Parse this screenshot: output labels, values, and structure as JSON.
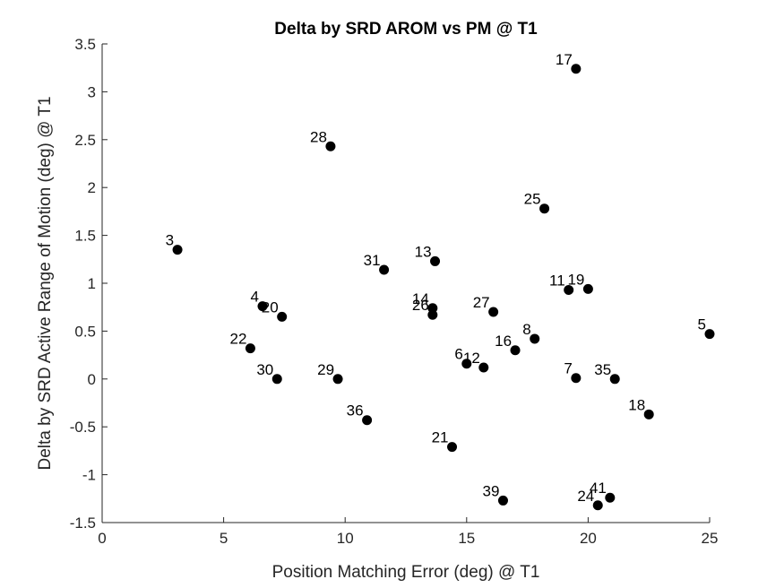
{
  "chart_data": {
    "type": "scatter",
    "title": "Delta by SRD AROM vs PM @ T1",
    "xlabel": "Position Matching Error (deg) @ T1",
    "ylabel": "Delta by SRD Active Range of Motion (deg) @ T1",
    "xlim": [
      0,
      25
    ],
    "ylim": [
      -1.5,
      3.5
    ],
    "xticks": [
      0,
      5,
      10,
      15,
      20,
      25
    ],
    "xtick_labels": [
      "0",
      "5",
      "10",
      "15",
      "20",
      "25"
    ],
    "yticks": [
      -1.5,
      -1,
      -0.5,
      0,
      0.5,
      1,
      1.5,
      2,
      2.5,
      3,
      3.5
    ],
    "ytick_labels": [
      "-1.5",
      "-1",
      "-0.5",
      "0",
      "0.5",
      "1",
      "1.5",
      "2",
      "2.5",
      "3",
      "3.5"
    ],
    "grid": false,
    "marker_color": "#000000",
    "points": [
      {
        "label": "3",
        "x": 3.1,
        "y": 1.35
      },
      {
        "label": "28",
        "x": 9.4,
        "y": 2.43
      },
      {
        "label": "17",
        "x": 19.5,
        "y": 3.24
      },
      {
        "label": "25",
        "x": 18.2,
        "y": 1.78
      },
      {
        "label": "31",
        "x": 11.6,
        "y": 1.14
      },
      {
        "label": "13",
        "x": 13.7,
        "y": 1.23
      },
      {
        "label": "11",
        "x": 19.2,
        "y": 0.93
      },
      {
        "label": "19",
        "x": 20.0,
        "y": 0.94
      },
      {
        "label": "4",
        "x": 6.6,
        "y": 0.76
      },
      {
        "label": "20",
        "x": 7.4,
        "y": 0.65
      },
      {
        "label": "14",
        "x": 13.6,
        "y": 0.74
      },
      {
        "label": "26",
        "x": 13.6,
        "y": 0.67
      },
      {
        "label": "27",
        "x": 16.1,
        "y": 0.7
      },
      {
        "label": "5",
        "x": 25.0,
        "y": 0.47
      },
      {
        "label": "22",
        "x": 6.1,
        "y": 0.32
      },
      {
        "label": "8",
        "x": 17.8,
        "y": 0.42
      },
      {
        "label": "16",
        "x": 17.0,
        "y": 0.3
      },
      {
        "label": "6",
        "x": 15.0,
        "y": 0.16
      },
      {
        "label": "12",
        "x": 15.7,
        "y": 0.12
      },
      {
        "label": "30",
        "x": 7.2,
        "y": 0.0
      },
      {
        "label": "29",
        "x": 9.7,
        "y": 0.0
      },
      {
        "label": "7",
        "x": 19.5,
        "y": 0.01
      },
      {
        "label": "35",
        "x": 21.1,
        "y": 0.0
      },
      {
        "label": "36",
        "x": 10.9,
        "y": -0.43
      },
      {
        "label": "18",
        "x": 22.5,
        "y": -0.37
      },
      {
        "label": "21",
        "x": 14.4,
        "y": -0.71
      },
      {
        "label": "39",
        "x": 16.5,
        "y": -1.27
      },
      {
        "label": "24",
        "x": 20.4,
        "y": -1.32
      },
      {
        "label": "41",
        "x": 20.9,
        "y": -1.24
      }
    ]
  }
}
